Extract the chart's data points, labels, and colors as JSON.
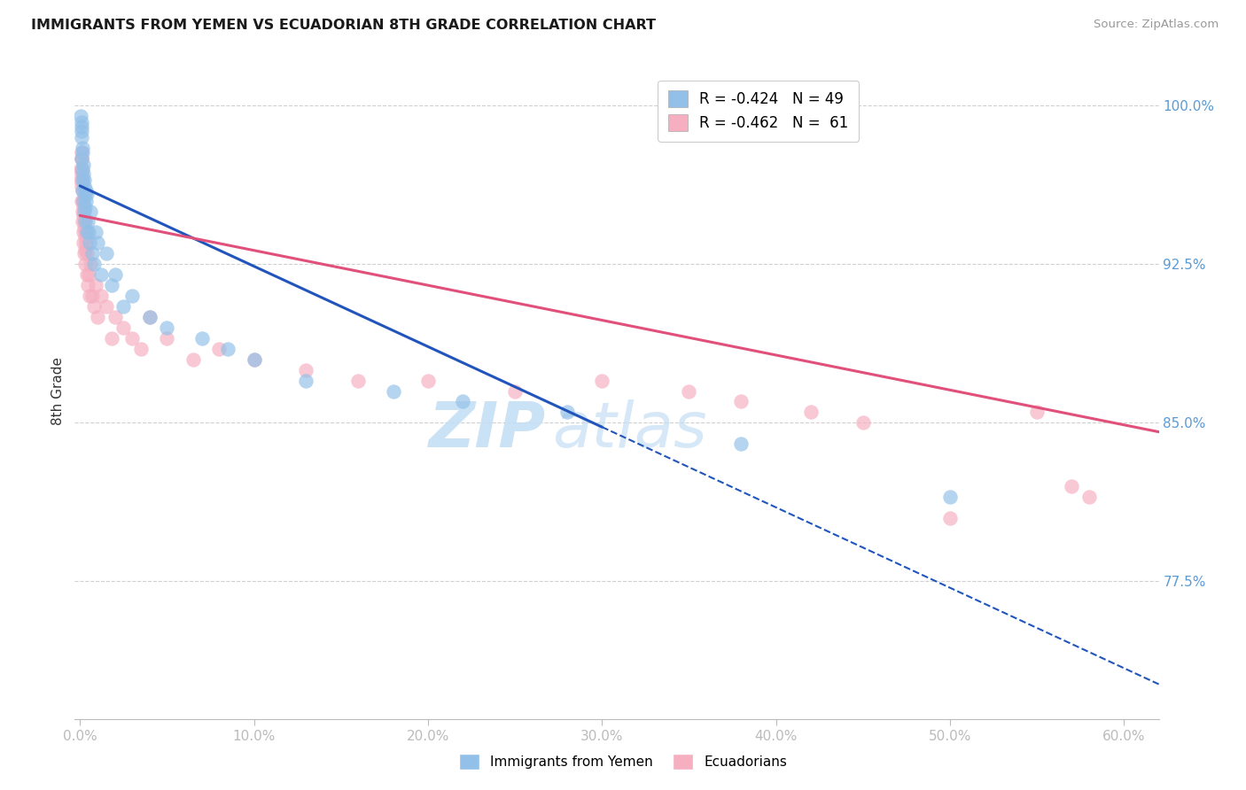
{
  "title": "IMMIGRANTS FROM YEMEN VS ECUADORIAN 8TH GRADE CORRELATION CHART",
  "source": "Source: ZipAtlas.com",
  "xlabel_vals": [
    0.0,
    10.0,
    20.0,
    30.0,
    40.0,
    50.0,
    60.0
  ],
  "xlabel_labels": [
    "0.0%",
    "10.0%",
    "20.0%",
    "30.0%",
    "40.0%",
    "50.0%",
    "60.0%"
  ],
  "ylabel": "8th Grade",
  "yright_vals": [
    100.0,
    92.5,
    85.0,
    77.5
  ],
  "yright_labels": [
    "100.0%",
    "92.5%",
    "85.0%",
    "77.5%"
  ],
  "ymin": 71.0,
  "ymax": 102.0,
  "xmin": -0.3,
  "xmax": 62.0,
  "blue_color": "#92c0e8",
  "pink_color": "#f5afc0",
  "regression_blue": "#2255bb",
  "regression_pink": "#e0507a",
  "watermark_zip_color": "#c5dff5",
  "watermark_atlas_color": "#c5dff5",
  "blue_label": "Immigrants from Yemen",
  "pink_label": "Ecuadorians",
  "legend_blue": "R = -0.424   N = 49",
  "legend_pink": "R = -0.462   N =  61",
  "blue_solid_end": 30.0,
  "blue_dashed_end": 62.0,
  "pink_solid_end": 62.0,
  "blue_intercept": 96.2,
  "blue_slope": -0.38,
  "pink_intercept": 94.8,
  "pink_slope": -0.165,
  "blue_x": [
    0.05,
    0.07,
    0.08,
    0.09,
    0.1,
    0.11,
    0.12,
    0.13,
    0.14,
    0.15,
    0.16,
    0.17,
    0.18,
    0.2,
    0.22,
    0.24,
    0.25,
    0.27,
    0.28,
    0.3,
    0.32,
    0.35,
    0.38,
    0.4,
    0.45,
    0.5,
    0.55,
    0.6,
    0.7,
    0.8,
    0.9,
    1.0,
    1.2,
    1.5,
    1.8,
    2.0,
    2.5,
    3.0,
    4.0,
    5.0,
    7.0,
    8.5,
    10.0,
    13.0,
    18.0,
    22.0,
    28.0,
    38.0,
    50.0
  ],
  "blue_y": [
    99.5,
    99.0,
    98.5,
    98.8,
    99.2,
    97.5,
    98.0,
    97.0,
    96.5,
    97.8,
    96.0,
    97.2,
    95.5,
    96.8,
    96.2,
    95.0,
    96.5,
    95.8,
    94.5,
    95.2,
    96.0,
    95.5,
    94.0,
    95.8,
    94.5,
    94.0,
    93.5,
    95.0,
    93.0,
    92.5,
    94.0,
    93.5,
    92.0,
    93.0,
    91.5,
    92.0,
    90.5,
    91.0,
    90.0,
    89.5,
    89.0,
    88.5,
    88.0,
    87.0,
    86.5,
    86.0,
    85.5,
    84.0,
    81.5
  ],
  "pink_x": [
    0.05,
    0.06,
    0.07,
    0.08,
    0.09,
    0.1,
    0.11,
    0.12,
    0.13,
    0.14,
    0.15,
    0.16,
    0.17,
    0.18,
    0.19,
    0.2,
    0.22,
    0.24,
    0.25,
    0.27,
    0.28,
    0.3,
    0.32,
    0.35,
    0.38,
    0.4,
    0.45,
    0.5,
    0.55,
    0.6,
    0.7,
    0.8,
    0.9,
    1.0,
    1.2,
    1.5,
    1.8,
    2.0,
    2.5,
    3.0,
    3.5,
    4.0,
    5.0,
    6.5,
    8.0,
    10.0,
    13.0,
    16.0,
    20.0,
    25.0,
    30.0,
    35.0,
    38.0,
    42.0,
    45.0,
    50.0,
    55.0,
    57.0,
    58.0,
    0.08,
    0.09
  ],
  "pink_y": [
    96.5,
    97.0,
    96.8,
    97.5,
    96.2,
    97.8,
    95.5,
    96.5,
    95.0,
    96.0,
    94.5,
    95.5,
    94.0,
    95.2,
    93.5,
    94.8,
    94.2,
    93.0,
    94.5,
    93.8,
    92.5,
    93.2,
    94.0,
    93.5,
    92.0,
    93.0,
    91.5,
    92.0,
    91.0,
    92.5,
    91.0,
    90.5,
    91.5,
    90.0,
    91.0,
    90.5,
    89.0,
    90.0,
    89.5,
    89.0,
    88.5,
    90.0,
    89.0,
    88.0,
    88.5,
    88.0,
    87.5,
    87.0,
    87.0,
    86.5,
    87.0,
    86.5,
    86.0,
    85.5,
    85.0,
    80.5,
    85.5,
    82.0,
    81.5,
    97.0,
    97.5
  ]
}
